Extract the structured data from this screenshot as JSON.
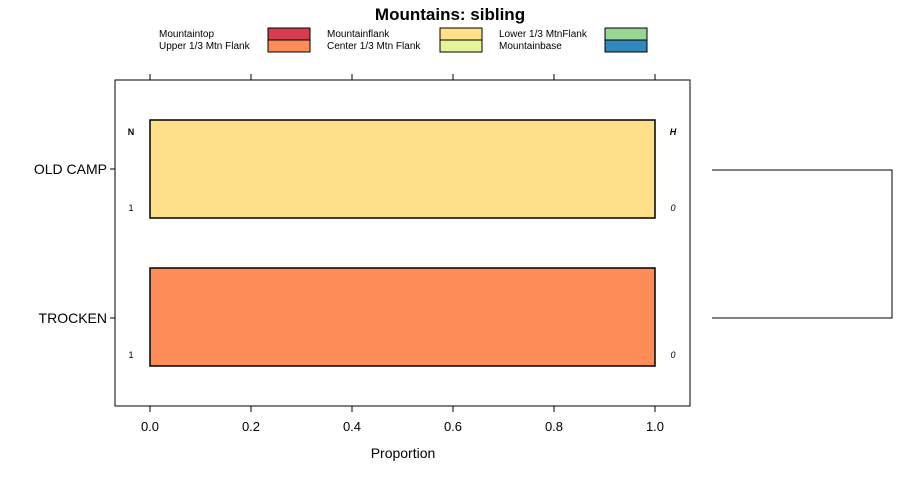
{
  "chart_data": {
    "type": "bar",
    "title": "Mountains: sibling",
    "xlabel": "Proportion",
    "ylabel": "",
    "xlim": [
      -0.07,
      1.07
    ],
    "x_ticks": [
      "0.0",
      "0.2",
      "0.4",
      "0.6",
      "0.8",
      "1.0"
    ],
    "categories": [
      "OLD CAMP",
      "TROCKEN"
    ],
    "legend": [
      {
        "name": "Mountaintop",
        "color": "#D53E4F"
      },
      {
        "name": "Upper 1/3 Mtn Flank",
        "color": "#FC8D59"
      },
      {
        "name": "Mountainflank",
        "color": "#FEE08B"
      },
      {
        "name": "Center 1/3 Mtn Flank",
        "color": "#E6F598"
      },
      {
        "name": "Lower 1/3 MtnFlank",
        "color": "#99D594"
      },
      {
        "name": "Mountainbase",
        "color": "#3288BD"
      }
    ],
    "series": [
      {
        "name": "Mountaintop",
        "values": [
          0,
          0
        ]
      },
      {
        "name": "Upper 1/3 Mtn Flank",
        "values": [
          0,
          1
        ]
      },
      {
        "name": "Mountainflank",
        "values": [
          1,
          0
        ]
      },
      {
        "name": "Center 1/3 Mtn Flank",
        "values": [
          0,
          0
        ]
      },
      {
        "name": "Lower 1/3 MtnFlank",
        "values": [
          0,
          0
        ]
      },
      {
        "name": "Mountainbase",
        "values": [
          0,
          0
        ]
      }
    ],
    "n_header": "N",
    "h_header": "H",
    "n_values": [
      "1",
      "1"
    ],
    "h_values": [
      "0",
      "0"
    ]
  }
}
